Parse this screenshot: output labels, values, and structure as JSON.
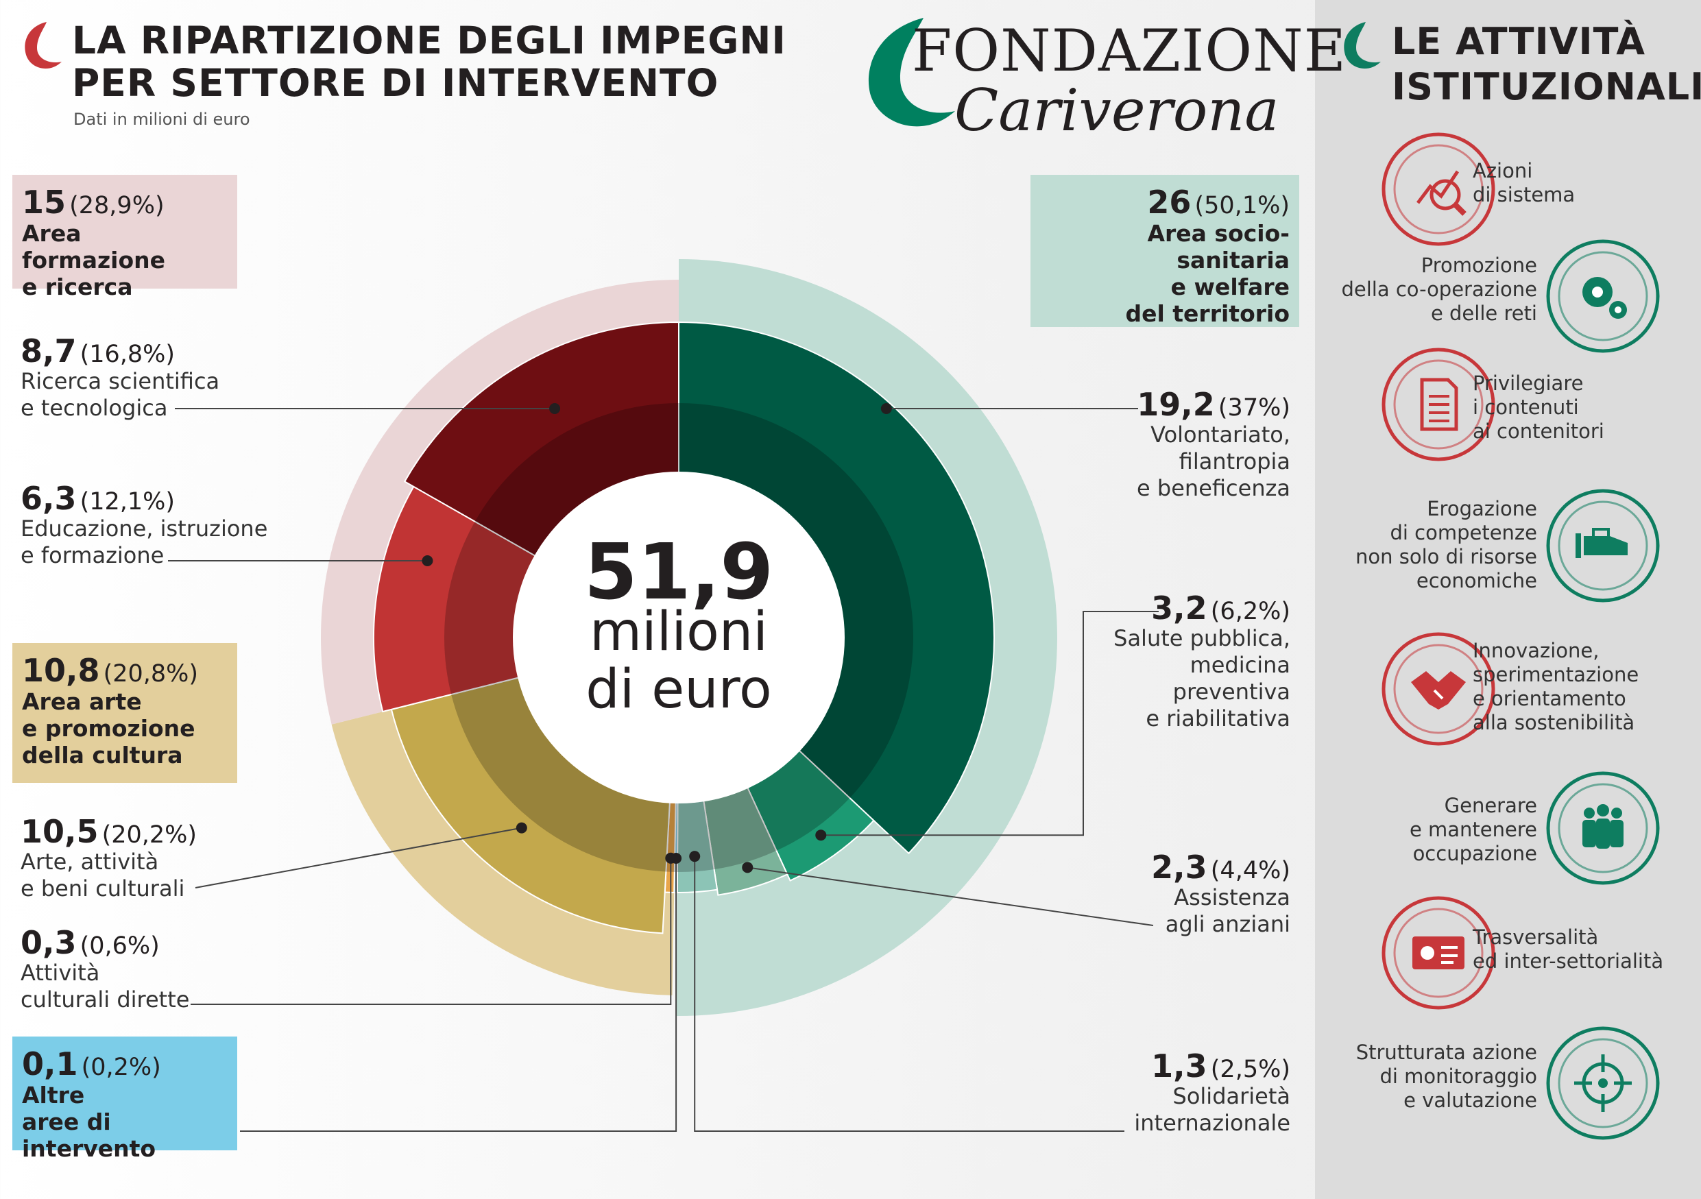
{
  "left_header": {
    "title_line1": "LA RIPARTIZIONE DEGLI IMPEGNI",
    "title_line2": "PER SETTORE DI INTERVENTO",
    "subtitle": "Dati in milioni di euro"
  },
  "logo": {
    "line1": "FONDAZIONE",
    "line2": "Cariverona"
  },
  "right_header": {
    "title_line1": "LE ATTIVITÀ",
    "title_line2": "ISTITUZIONALI"
  },
  "colors": {
    "red_dark": "#6e0e12",
    "red": "#c13434",
    "gold": "#c3a84c",
    "orange": "#e9a64b",
    "blue": "#7ccde8",
    "teal_light": "#8cc4b6",
    "green_pale": "#7bb39a",
    "green_mid": "#1c9a73",
    "green_dark": "#005a44",
    "pink_bg": "#ead5d6",
    "beige_bg": "#e3cf9c",
    "mint_bg": "#c0ddd4",
    "icon_red": "#c7373a",
    "icon_green": "#0e7d60"
  },
  "chart_data": {
    "type": "donut",
    "center_value": "51,9",
    "center_line1": "milioni",
    "center_line2": "di euro",
    "total": 51.9,
    "areas": [
      {
        "value": "15",
        "pct": "(28,9%)",
        "label_line1": "Area formazione",
        "label_line2": "e ricerca",
        "amount": 15
      },
      {
        "value": "10,8",
        "pct": "(20,8%)",
        "label_line1": "Area arte",
        "label_line2": "e promozione",
        "label_line3": "della cultura",
        "amount": 10.8
      },
      {
        "value": "0,1",
        "pct": "(0,2%)",
        "label_line1": "Altre",
        "label_line2": "aree di intervento",
        "amount": 0.1
      },
      {
        "value": "26",
        "pct": "(50,1%)",
        "label_line1": "Area socio-sanitaria",
        "label_line2": "e welfare",
        "label_line3": "del territorio",
        "amount": 26
      }
    ],
    "sectors": [
      {
        "value": "8,7",
        "pct": "(16,8%)",
        "line1": "Ricerca scientifica",
        "line2": "e tecnologica",
        "amount": 8.7,
        "color": "#6e0e12"
      },
      {
        "value": "6,3",
        "pct": "(12,1%)",
        "line1": "Educazione, istruzione",
        "line2": "e formazione",
        "amount": 6.3,
        "color": "#c13434"
      },
      {
        "value": "10,5",
        "pct": "(20,2%)",
        "line1": "Arte, attività",
        "line2": "e beni culturali",
        "amount": 10.5,
        "color": "#c3a84c"
      },
      {
        "value": "0,3",
        "pct": "(0,6%)",
        "line1": "Attività",
        "line2": "culturali dirette",
        "amount": 0.3,
        "color": "#e9a64b"
      },
      {
        "value": "0,1",
        "pct": "",
        "line1": "",
        "line2": "",
        "amount": 0.1,
        "color": "#7ccde8"
      },
      {
        "value": "1,3",
        "pct": "(2,5%)",
        "line1": "Solidarietà",
        "line2": "internazionale",
        "amount": 1.3,
        "color": "#8cc4b6"
      },
      {
        "value": "2,3",
        "pct": "(4,4%)",
        "line1": "Assistenza",
        "line2": "agli anziani",
        "amount": 2.3,
        "color": "#7bb39a"
      },
      {
        "value": "3,2",
        "pct": "(6,2%)",
        "line1": "Salute pubblica,",
        "line2": "medicina",
        "line3": "preventiva",
        "line4": "e riabilitativa",
        "amount": 3.2,
        "color": "#1c9a73"
      },
      {
        "value": "19,2",
        "pct": "(37%)",
        "line1": "Volontariato,",
        "line2": "filantropia",
        "line3": "e beneficenza",
        "amount": 19.2,
        "color": "#005a44"
      }
    ]
  },
  "activities": [
    {
      "line1": "Azioni",
      "line2": "di sistema",
      "icon": "chart-magnifier-icon"
    },
    {
      "line1": "Promozione",
      "line2": "della co-operazione",
      "line3": "e delle reti",
      "icon": "gears-icon"
    },
    {
      "line1": "Privilegiare",
      "line2": "i contenuti",
      "line3": "ai contenitori",
      "icon": "document-icon"
    },
    {
      "line1": "Erogazione",
      "line2": "di competenze",
      "line3": "non solo di risorse",
      "line4": "economiche",
      "icon": "giving-hand-icon"
    },
    {
      "line1": "Innovazione,",
      "line2": "sperimentazione",
      "line3": "e orientamento",
      "line4": "alla sostenibilità",
      "icon": "handshake-icon"
    },
    {
      "line1": "Generare",
      "line2": "e mantenere",
      "line3": "occupazione",
      "icon": "people-icon"
    },
    {
      "line1": "Trasversalità",
      "line2": "ed inter-settorialità",
      "icon": "id-card-icon"
    },
    {
      "line1": "Strutturata azione",
      "line2": "di monitoraggio",
      "line3": "e valutazione",
      "icon": "target-icon"
    }
  ]
}
